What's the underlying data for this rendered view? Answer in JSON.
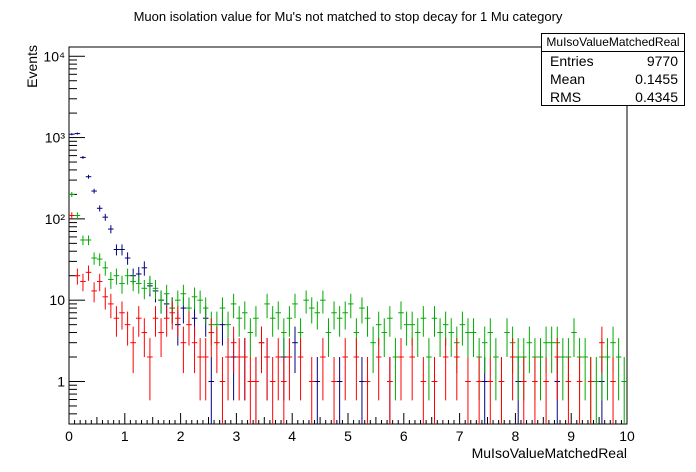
{
  "chart_data": {
    "type": "scatter",
    "title": "Muon isolation value for Mu's not matched to stop decay for 1 Mu category",
    "xlabel": "MuIsoValueMatchedReal",
    "ylabel": "Events",
    "xlim": [
      0,
      10
    ],
    "ylim": [
      0.3,
      13000
    ],
    "yscale": "log",
    "x_ticks": [
      "0",
      "1",
      "2",
      "3",
      "4",
      "5",
      "6",
      "7",
      "8",
      "9",
      "10"
    ],
    "y_ticks": [
      "1",
      "10",
      "10²",
      "10³",
      "10⁴"
    ],
    "bin_width": 0.1,
    "series": [
      {
        "color": "#00007f",
        "x": [
          0.05,
          0.15,
          0.25,
          0.35,
          0.45,
          0.55,
          0.65,
          0.75,
          0.85,
          0.95,
          1.05,
          1.15,
          1.25,
          1.35,
          1.45,
          1.55,
          1.65,
          1.75,
          1.85,
          1.95,
          2.05,
          2.25,
          2.45,
          2.55,
          2.75,
          2.95,
          3.15,
          3.35,
          3.55,
          3.85,
          4.05,
          4.45,
          4.85,
          5.25,
          5.75,
          6.55,
          7.45,
          8.05,
          8.75,
          9.55
        ],
        "y": [
          1100,
          1120,
          570,
          330,
          220,
          135,
          105,
          75,
          42,
          42,
          33,
          20,
          21,
          25,
          15,
          13,
          10,
          9,
          8,
          5,
          8,
          6,
          6,
          1,
          5,
          2,
          2,
          1,
          2,
          2,
          3,
          1,
          1,
          1,
          1,
          1,
          1,
          1,
          1,
          1
        ]
      },
      {
        "color": "#00aa00",
        "x": [
          0.05,
          0.15,
          0.25,
          0.35,
          0.45,
          0.55,
          0.65,
          0.75,
          0.85,
          0.95,
          1.05,
          1.15,
          1.25,
          1.35,
          1.45,
          1.55,
          1.65,
          1.75,
          1.85,
          1.95,
          2.05,
          2.15,
          2.25,
          2.35,
          2.45,
          2.55,
          2.65,
          2.75,
          2.85,
          2.95,
          3.05,
          3.15,
          3.25,
          3.35,
          3.45,
          3.55,
          3.65,
          3.75,
          3.85,
          3.95,
          4.05,
          4.15,
          4.25,
          4.35,
          4.45,
          4.55,
          4.65,
          4.75,
          4.85,
          4.95,
          5.05,
          5.15,
          5.25,
          5.35,
          5.45,
          5.55,
          5.65,
          5.75,
          5.85,
          5.95,
          6.05,
          6.15,
          6.25,
          6.35,
          6.45,
          6.55,
          6.65,
          6.75,
          6.85,
          6.95,
          7.05,
          7.15,
          7.25,
          7.35,
          7.45,
          7.55,
          7.65,
          7.75,
          7.85,
          7.95,
          8.05,
          8.15,
          8.25,
          8.35,
          8.45,
          8.55,
          8.65,
          8.75,
          8.85,
          8.95,
          9.05,
          9.15,
          9.25,
          9.35,
          9.45,
          9.55,
          9.65,
          9.75,
          9.85,
          9.95
        ],
        "y": [
          200,
          110,
          55,
          55,
          33,
          32,
          25,
          18,
          20,
          16,
          20,
          17,
          16,
          14,
          16,
          14,
          10,
          12,
          8,
          10,
          12,
          8,
          11,
          10,
          8,
          5,
          5,
          8,
          5,
          9,
          6,
          7,
          4,
          6,
          3,
          9,
          6,
          7,
          4,
          6,
          9,
          4,
          10,
          8,
          7,
          10,
          4,
          7,
          6,
          7,
          9,
          4,
          8,
          6,
          3,
          5,
          4,
          6,
          2,
          7,
          5,
          5,
          4,
          6,
          2,
          6,
          4,
          5,
          4,
          3,
          5,
          4,
          4,
          2,
          3,
          4,
          2,
          1,
          4,
          3,
          2,
          2,
          3,
          2,
          2,
          3,
          3,
          3,
          2,
          2,
          4,
          2,
          2,
          1,
          1,
          2,
          2,
          3,
          2,
          1
        ]
      },
      {
        "color": "#ff0000",
        "x": [
          0.05,
          0.15,
          0.25,
          0.35,
          0.45,
          0.55,
          0.65,
          0.75,
          0.85,
          0.95,
          1.05,
          1.15,
          1.25,
          1.35,
          1.45,
          1.55,
          1.65,
          1.75,
          1.85,
          1.95,
          2.05,
          2.15,
          2.25,
          2.35,
          2.45,
          2.55,
          2.65,
          2.75,
          2.85,
          2.95,
          3.05,
          3.15,
          3.25,
          3.35,
          3.45,
          3.55,
          3.65,
          3.75,
          3.85,
          3.95,
          4.15,
          4.35,
          4.55,
          4.75,
          4.95,
          5.15,
          5.35,
          5.55,
          5.75,
          5.95,
          6.15,
          6.35,
          6.55,
          6.75,
          6.95,
          7.15,
          7.35,
          7.55,
          7.75,
          7.95,
          8.15,
          8.35,
          8.55,
          8.75,
          8.95,
          9.15,
          9.35,
          9.55,
          9.75
        ],
        "y": [
          110,
          20,
          17,
          22,
          13,
          17,
          11,
          9,
          6,
          7,
          5,
          3,
          6,
          4,
          2,
          6,
          4,
          6,
          7,
          6,
          3,
          5,
          3,
          2,
          2,
          4,
          3,
          1,
          2,
          3,
          2,
          2,
          1,
          1,
          3,
          2,
          1,
          2,
          1,
          2,
          2,
          1,
          2,
          1,
          2,
          2,
          1,
          2,
          1,
          2,
          2,
          1,
          1,
          2,
          2,
          1,
          1,
          1,
          1,
          2,
          1,
          1,
          1,
          2,
          1,
          1,
          1,
          3,
          1
        ]
      }
    ]
  },
  "stats": {
    "name": "MuIsoValueMatchedReal",
    "entries_label": "Entries",
    "entries_value": "9770",
    "mean_label": "Mean",
    "mean_value": "0.1455",
    "rms_label": "RMS",
    "rms_value": "0.4345"
  }
}
